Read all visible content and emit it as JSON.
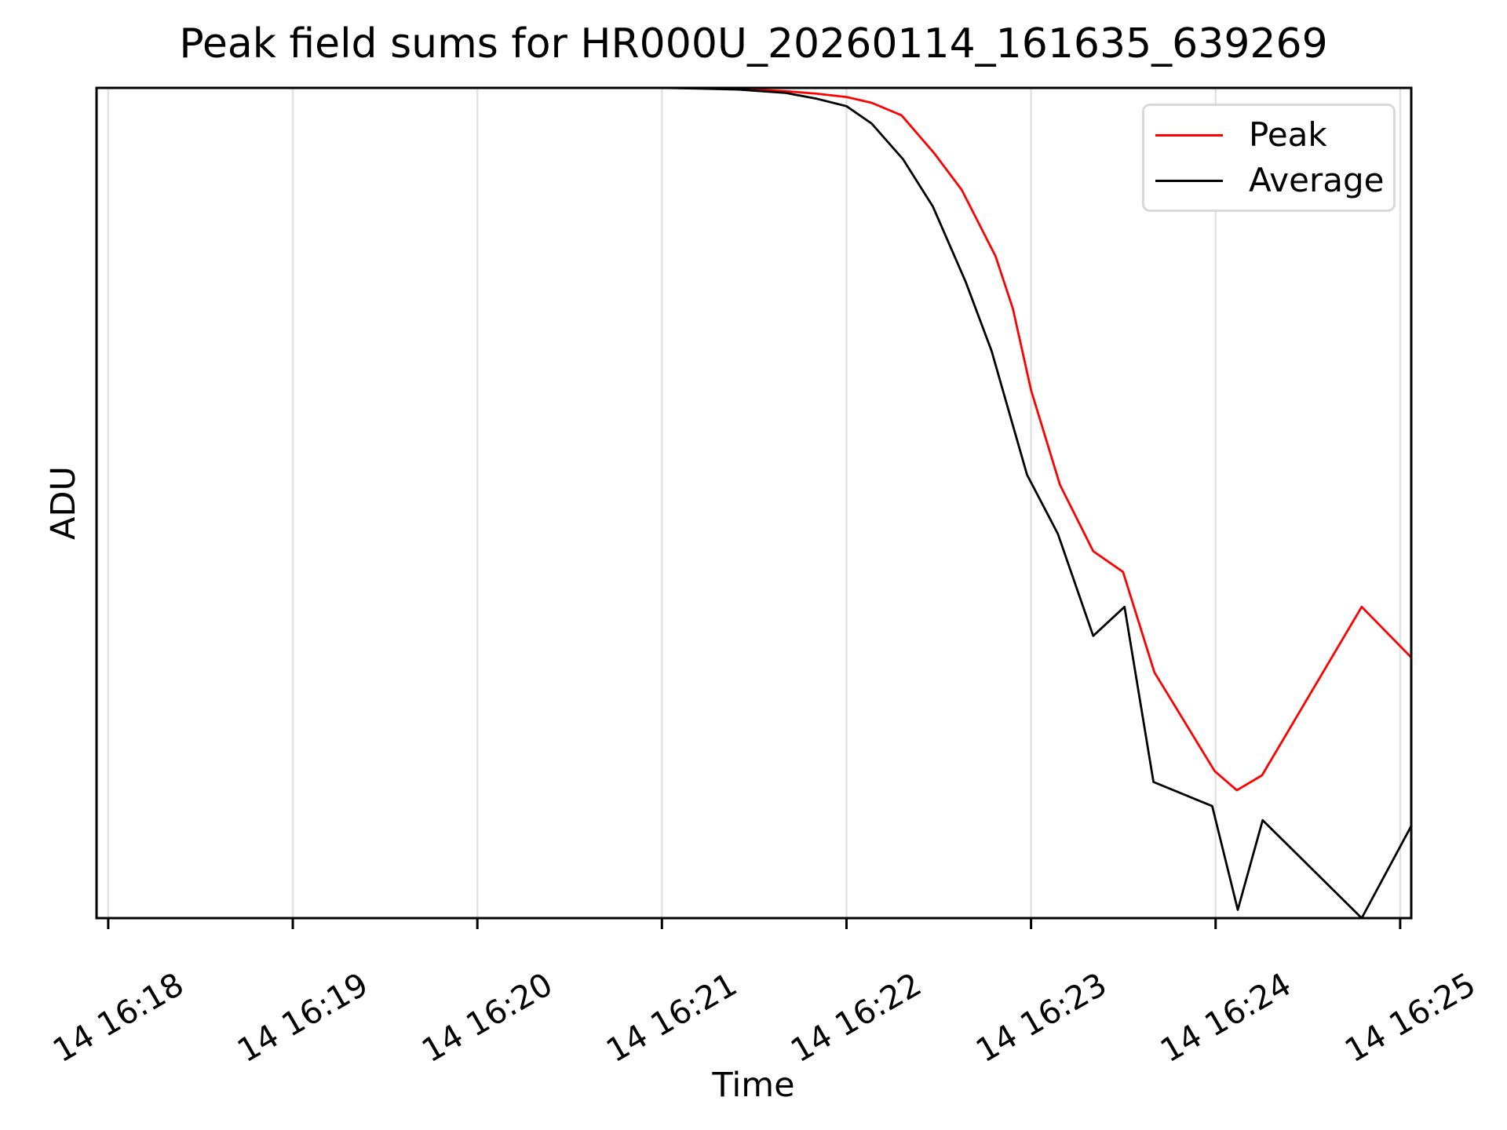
{
  "title": "Peak field sums for HR000U_20260114_161635_639269",
  "axes": {
    "xlabel": "Time",
    "ylabel": "ADU"
  },
  "legend": {
    "position": "upper right",
    "entries": [
      {
        "label": "Peak",
        "color": "#ff0000"
      },
      {
        "label": "Average",
        "color": "#000000"
      }
    ]
  },
  "colors": {
    "background": "#ffffff",
    "spine": "#000000",
    "grid": "#e3e3e3",
    "peak_line": "#ff0000",
    "average_line": "#000000"
  },
  "chart_data": {
    "type": "line",
    "title": "Peak field sums for HR000U_20260114_161635_639269",
    "xlabel": "Time",
    "ylabel": "ADU",
    "grid": "vertical gridlines only, no y ticks or y tick labels",
    "legend_position": "upper right",
    "x_unit": "seconds since 14 16:18:00 (tick labels are day hour:minute)",
    "y_note": "y axis shows no tick labels; values given normalized 0..1 of plotted ADU range (1 = saturated top plateau)",
    "xlim": [
      -3.8,
      423.6
    ],
    "ylim": [
      0,
      1
    ],
    "x_ticks": [
      {
        "t": 0,
        "label": "14 16:18"
      },
      {
        "t": 60,
        "label": "14 16:19"
      },
      {
        "t": 120,
        "label": "14 16:20"
      },
      {
        "t": 180,
        "label": "14 16:21"
      },
      {
        "t": 240,
        "label": "14 16:22"
      },
      {
        "t": 300,
        "label": "14 16:23"
      },
      {
        "t": 360,
        "label": "14 16:24"
      },
      {
        "t": 420,
        "label": "14 16:25"
      }
    ],
    "series": [
      {
        "name": "Peak",
        "color": "#ff0000",
        "points": [
          [
            -3.8,
            1.0
          ],
          [
            60,
            1.0
          ],
          [
            120,
            1.0
          ],
          [
            180,
            1.0
          ],
          [
            194.6,
            1.0
          ],
          [
            204.8,
            0.999
          ],
          [
            220.1,
            0.996
          ],
          [
            230.3,
            0.993
          ],
          [
            240,
            0.989
          ],
          [
            248.2,
            0.982
          ],
          [
            257.9,
            0.967
          ],
          [
            268.6,
            0.921
          ],
          [
            277.5,
            0.877
          ],
          [
            288.5,
            0.797
          ],
          [
            294.1,
            0.734
          ],
          [
            300,
            0.636
          ],
          [
            309.4,
            0.522
          ],
          [
            320.2,
            0.442
          ],
          [
            329.9,
            0.417
          ],
          [
            340.1,
            0.296
          ],
          [
            359.7,
            0.177
          ],
          [
            366.9,
            0.154
          ],
          [
            375.1,
            0.172
          ],
          [
            407.5,
            0.375
          ],
          [
            423.6,
            0.314
          ]
        ]
      },
      {
        "name": "Average",
        "color": "#000000",
        "points": [
          [
            -3.8,
            1.0
          ],
          [
            60,
            1.0
          ],
          [
            120,
            1.0
          ],
          [
            180,
            1.0
          ],
          [
            194.6,
            0.999
          ],
          [
            204.8,
            0.998
          ],
          [
            220.1,
            0.994
          ],
          [
            230.3,
            0.987
          ],
          [
            240,
            0.978
          ],
          [
            248.2,
            0.957
          ],
          [
            258.4,
            0.914
          ],
          [
            268.1,
            0.857
          ],
          [
            278.8,
            0.766
          ],
          [
            287.2,
            0.683
          ],
          [
            290.8,
            0.636
          ],
          [
            298.7,
            0.534
          ],
          [
            308.7,
            0.463
          ],
          [
            320.2,
            0.34
          ],
          [
            330.4,
            0.375
          ],
          [
            339.8,
            0.164
          ],
          [
            358.9,
            0.135
          ],
          [
            367.2,
            0.01
          ],
          [
            375.3,
            0.118
          ],
          [
            407.5,
            0.0
          ],
          [
            423.6,
            0.111
          ]
        ]
      }
    ]
  }
}
